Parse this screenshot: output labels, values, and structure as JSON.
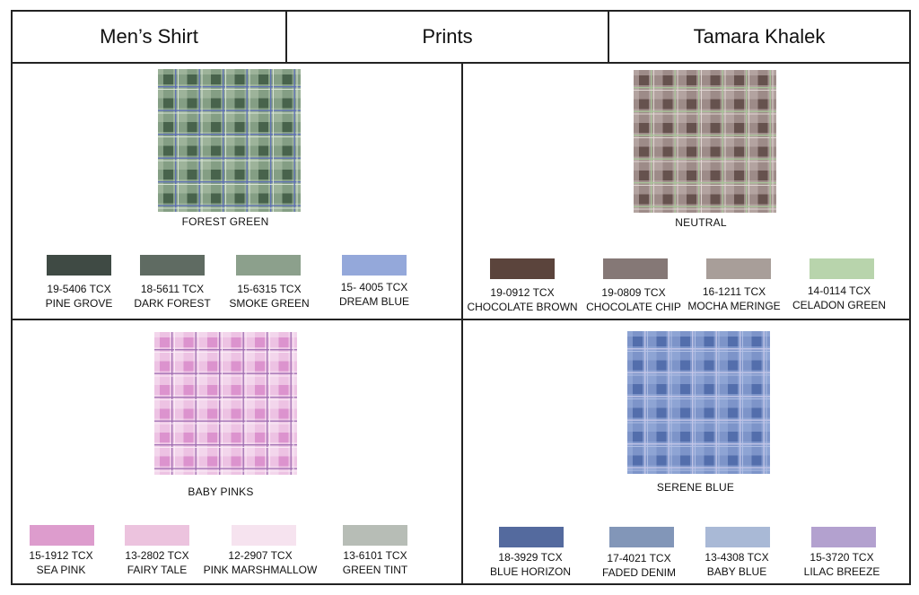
{
  "header": {
    "category": "Men’s Shirt",
    "section": "Prints",
    "designer": "Tamara Khalek"
  },
  "panels": [
    {
      "name": "FOREST GREEN",
      "plaid": {
        "base": "#9db39a",
        "dark": "#3f5a44",
        "mid": "#6f8d73",
        "thin": "#5b6cb8",
        "thin2": "#dfe9dc"
      },
      "swatches": [
        {
          "code": "19-5406 TCX",
          "name": "PINE GROVE",
          "color": "#3f4a44"
        },
        {
          "code": "18-5611 TCX",
          "name": "DARK FOREST",
          "color": "#5f6b62"
        },
        {
          "code": "15-6315 TCX",
          "name": "SMOKE GREEN",
          "color": "#8ca08c"
        },
        {
          "code": "15- 4005 TCX",
          "name": "DREAM BLUE",
          "color": "#94a8da"
        }
      ]
    },
    {
      "name": "NEUTRAL",
      "plaid": {
        "base": "#b3a3a0",
        "dark": "#5e4a45",
        "mid": "#8a7874",
        "thin": "#a8c89a",
        "thin2": "#e5dcd8"
      },
      "swatches": [
        {
          "code": "19-0912 TCX",
          "name": "CHOCOLATE BROWN",
          "color": "#5b443c"
        },
        {
          "code": "19-0809 TCX",
          "name": "CHOCOLATE CHIP",
          "color": "#857876"
        },
        {
          "code": "16-1211 TCX",
          "name": "MOCHA MERINGE",
          "color": "#a89e99"
        },
        {
          "code": "14-0114 TCX",
          "name": "CELADON GREEN",
          "color": "#b8d4ac"
        }
      ]
    },
    {
      "name": "BABY PINKS",
      "plaid": {
        "base": "#f3d6ec",
        "dark": "#d98ccb",
        "mid": "#e7b3dc",
        "thin": "#9c6cb0",
        "thin2": "#fbeef7"
      },
      "swatches": [
        {
          "code": "15-1912 TCX",
          "name": "SEA PINK",
          "color": "#dd9ccd"
        },
        {
          "code": "13-2802 TCX",
          "name": "FAIRY TALE",
          "color": "#ecc3de"
        },
        {
          "code": "12-2907 TCX",
          "name": "PINK MARSHMALLOW",
          "color": "#f6e3ef"
        },
        {
          "code": "13-6101 TCX",
          "name": "GREEN TINT",
          "color": "#b7bdb6"
        }
      ]
    },
    {
      "name": "SERENE BLUE",
      "plaid": {
        "base": "#8ea4d4",
        "dark": "#4e68a8",
        "mid": "#6f86c0",
        "thin": "#c6c8e8",
        "thin2": "#b5c2e6"
      },
      "swatches": [
        {
          "code": "18-3929 TCX",
          "name": "BLUE HORIZON",
          "color": "#546a9e"
        },
        {
          "code": "17-4021 TCX",
          "name": "FADED DENIM",
          "color": "#8296b8"
        },
        {
          "code": "13-4308 TCX",
          "name": "BABY BLUE",
          "color": "#a9b9d6"
        },
        {
          "code": "15-3720 TCX",
          "name": "LILAC BREEZE",
          "color": "#b3a1cf"
        }
      ]
    }
  ]
}
